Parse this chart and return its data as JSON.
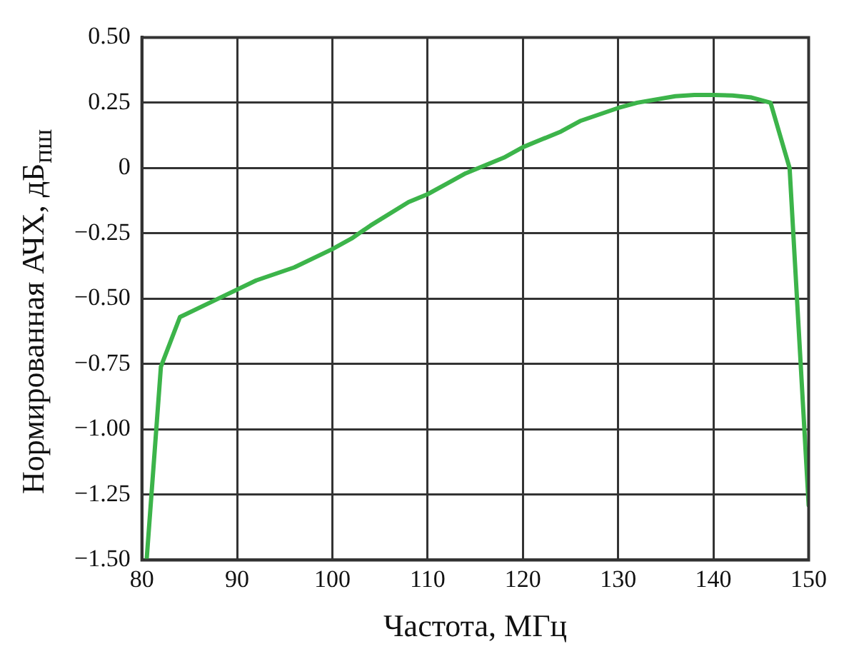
{
  "chart_data": {
    "type": "line",
    "xlabel": "Частота, МГц",
    "ylabel": "Нормированная АЧХ, дБ$_{пш}$",
    "xlim": [
      80,
      150
    ],
    "xticks": [
      80,
      90,
      100,
      110,
      120,
      130,
      140,
      150
    ],
    "ylim": [
      -1.5,
      0.5
    ],
    "yticks": [
      {
        "value": -1.5,
        "label": "−1.50"
      },
      {
        "value": -1.25,
        "label": "−1.25"
      },
      {
        "value": -1,
        "label": "−1.00"
      },
      {
        "value": -0.75,
        "label": "−0.75"
      },
      {
        "value": -0.5,
        "label": "−0.50"
      },
      {
        "value": -0.25,
        "label": "−0.25"
      },
      0,
      {
        "value": 0.25,
        "label": "0.25"
      },
      {
        "value": 0.5,
        "label": "0.50"
      }
    ],
    "grid": true,
    "legend": false,
    "marker": "none",
    "line_style": "solid",
    "series": [
      {
        "color": "#3cb44a",
        "x": [
          80.5,
          82,
          84,
          88,
          92,
          96,
          100,
          102,
          104,
          108,
          110,
          112,
          114,
          116,
          118,
          120,
          124,
          126,
          130,
          132,
          136,
          138,
          140,
          142,
          144,
          146,
          148,
          150
        ],
        "values": [
          -1.5,
          -0.76,
          -0.57,
          -0.5,
          -0.43,
          -0.38,
          -0.31,
          -0.27,
          -0.22,
          -0.13,
          -0.1,
          -0.06,
          -0.02,
          0.01,
          0.04,
          0.08,
          0.14,
          0.18,
          0.23,
          0.25,
          0.275,
          0.28,
          0.28,
          0.278,
          0.27,
          0.25,
          0,
          -1.29
        ]
      }
    ]
  }
}
